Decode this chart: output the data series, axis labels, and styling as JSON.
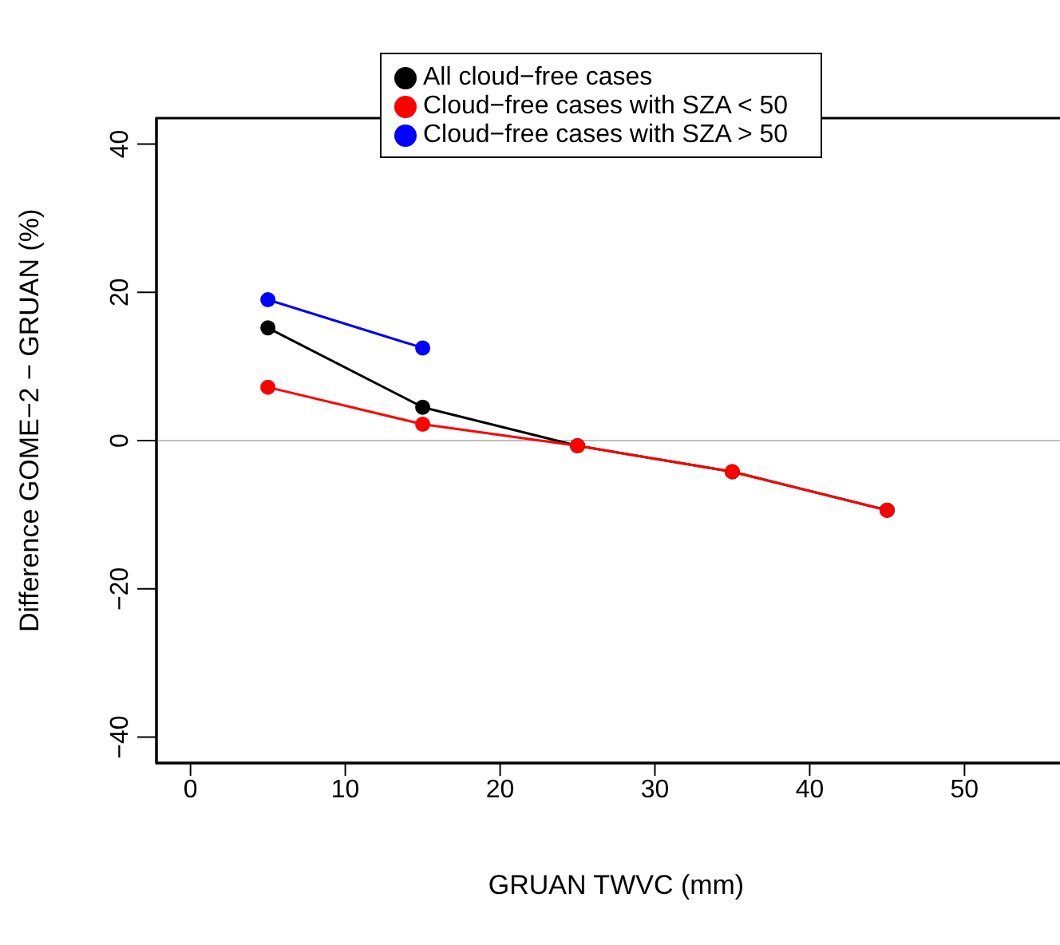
{
  "chart_data": {
    "type": "line",
    "xlabel": "GRUAN TWVC (mm)",
    "ylabel": "Difference GOME−2 − GRUAN (%)",
    "x": [
      5,
      15,
      25,
      35,
      45
    ],
    "series": [
      {
        "name": "All cloud−free cases",
        "color": "#000000",
        "values": [
          15.2,
          4.5,
          -0.7,
          -4.2,
          -9.4
        ]
      },
      {
        "name": "Cloud−free cases with SZA < 50",
        "color": "#ff0000",
        "values": [
          7.2,
          2.2,
          -0.7,
          -4.2,
          -9.4
        ]
      },
      {
        "name": "Cloud−free cases with SZA > 50",
        "color": "#0000ff",
        "x": [
          5,
          15
        ],
        "values": [
          19,
          12.5
        ]
      }
    ],
    "xlim": [
      -2.2,
      57.2
    ],
    "ylim": [
      -43.5,
      43.5
    ],
    "xticks": [
      0,
      10,
      20,
      30,
      40,
      50
    ],
    "yticks": [
      -40,
      -20,
      0,
      20,
      40
    ],
    "ref_lines": [
      {
        "axis": "y",
        "value": 0,
        "color": "#bebebe"
      }
    ],
    "legend": "top",
    "marker": "circle",
    "line_style": "solid",
    "grid": false
  }
}
